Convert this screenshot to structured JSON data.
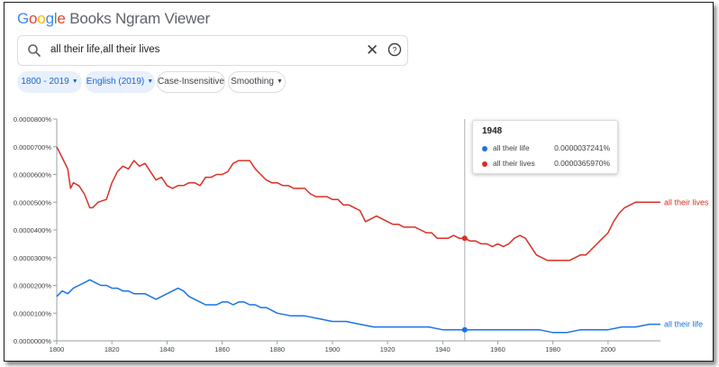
{
  "app": {
    "logo_google": [
      "G",
      "o",
      "o",
      "g",
      "l",
      "e"
    ],
    "logo_colors": [
      "#4285f4",
      "#ea4335",
      "#fbbc05",
      "#4285f4",
      "#34a853",
      "#ea4335"
    ],
    "logo_rest": " Books Ngram Viewer"
  },
  "search": {
    "query": "all their life,all their lives",
    "clear_icon": "close-icon",
    "help_icon": "help-icon"
  },
  "filters": {
    "years": "1800 - 2019",
    "corpus": "English (2019)",
    "case": "Case-Insensitive",
    "smoothing": "Smoothing"
  },
  "tooltip": {
    "year": "1948",
    "rows": [
      {
        "name": "all their life",
        "value": "0.0000037241%",
        "color": "#1a73e8"
      },
      {
        "name": "all their lives",
        "value": "0.0000365970%",
        "color": "#d93025"
      }
    ]
  },
  "chart_data": {
    "type": "line",
    "xlim": [
      1800,
      2019
    ],
    "ylim": [
      0,
      8e-06
    ],
    "y_ticks": [
      "0.0000000%",
      "0.0000100%",
      "0.0000200%",
      "0.0000300%",
      "0.0000400%",
      "0.0000500%",
      "0.0000600%",
      "0.0000700%",
      "0.0000800%"
    ],
    "x_ticks": [
      "1800",
      "1820",
      "1840",
      "1860",
      "1880",
      "1900",
      "1920",
      "1940",
      "1960",
      "1980",
      "2000"
    ],
    "hover_year": 1948,
    "series": [
      {
        "name": "all their lives",
        "color": "#d93025",
        "x": [
          1800,
          1802,
          1804,
          1805,
          1806,
          1808,
          1810,
          1812,
          1813,
          1815,
          1818,
          1820,
          1822,
          1824,
          1826,
          1828,
          1830,
          1832,
          1834,
          1836,
          1838,
          1840,
          1842,
          1844,
          1846,
          1848,
          1850,
          1852,
          1854,
          1856,
          1858,
          1860,
          1862,
          1864,
          1866,
          1868,
          1870,
          1872,
          1874,
          1876,
          1878,
          1880,
          1882,
          1884,
          1886,
          1888,
          1890,
          1892,
          1894,
          1896,
          1898,
          1900,
          1902,
          1904,
          1906,
          1908,
          1910,
          1912,
          1914,
          1916,
          1918,
          1920,
          1922,
          1924,
          1926,
          1928,
          1930,
          1932,
          1934,
          1936,
          1938,
          1940,
          1942,
          1944,
          1946,
          1948,
          1950,
          1952,
          1954,
          1956,
          1958,
          1960,
          1962,
          1964,
          1966,
          1968,
          1970,
          1972,
          1974,
          1976,
          1978,
          1980,
          1982,
          1984,
          1986,
          1988,
          1990,
          1992,
          1994,
          1996,
          1998,
          2000,
          2002,
          2004,
          2006,
          2008,
          2010,
          2012,
          2014,
          2016,
          2019
        ],
        "values": [
          7e-06,
          6.6e-06,
          6.2e-06,
          5.5e-06,
          5.7e-06,
          5.6e-06,
          5.3e-06,
          4.8e-06,
          4.8e-06,
          5e-06,
          5.1e-06,
          5.7e-06,
          6.1e-06,
          6.3e-06,
          6.2e-06,
          6.5e-06,
          6.3e-06,
          6.4e-06,
          6.1e-06,
          5.8e-06,
          5.9e-06,
          5.6e-06,
          5.5e-06,
          5.6e-06,
          5.6e-06,
          5.7e-06,
          5.7e-06,
          5.6e-06,
          5.9e-06,
          5.9e-06,
          6e-06,
          6e-06,
          6.1e-06,
          6.4e-06,
          6.5e-06,
          6.5e-06,
          6.5e-06,
          6.2e-06,
          6e-06,
          5.8e-06,
          5.7e-06,
          5.7e-06,
          5.6e-06,
          5.6e-06,
          5.5e-06,
          5.5e-06,
          5.5e-06,
          5.3e-06,
          5.2e-06,
          5.2e-06,
          5.2e-06,
          5.1e-06,
          5.1e-06,
          4.9e-06,
          4.9e-06,
          4.8e-06,
          4.7e-06,
          4.3e-06,
          4.4e-06,
          4.5e-06,
          4.4e-06,
          4.3e-06,
          4.2e-06,
          4.2e-06,
          4.1e-06,
          4.1e-06,
          4.1e-06,
          4e-06,
          3.9e-06,
          3.9e-06,
          3.7e-06,
          3.7e-06,
          3.7e-06,
          3.8e-06,
          3.7e-06,
          3.7e-06,
          3.6e-06,
          3.6e-06,
          3.5e-06,
          3.5e-06,
          3.4e-06,
          3.5e-06,
          3.4e-06,
          3.5e-06,
          3.7e-06,
          3.8e-06,
          3.7e-06,
          3.4e-06,
          3.1e-06,
          3e-06,
          2.9e-06,
          2.9e-06,
          2.9e-06,
          2.9e-06,
          2.9e-06,
          3e-06,
          3.1e-06,
          3.1e-06,
          3.3e-06,
          3.5e-06,
          3.7e-06,
          3.9e-06,
          4.3e-06,
          4.6e-06,
          4.8e-06,
          4.9e-06,
          5e-06,
          5e-06,
          5e-06,
          5e-06,
          5e-06
        ]
      },
      {
        "name": "all their life",
        "color": "#1a73e8",
        "x": [
          1800,
          1802,
          1804,
          1806,
          1808,
          1810,
          1812,
          1814,
          1816,
          1818,
          1820,
          1822,
          1824,
          1826,
          1828,
          1830,
          1832,
          1834,
          1836,
          1838,
          1840,
          1842,
          1844,
          1846,
          1848,
          1850,
          1852,
          1854,
          1856,
          1858,
          1860,
          1862,
          1864,
          1866,
          1868,
          1870,
          1872,
          1874,
          1876,
          1878,
          1880,
          1885,
          1890,
          1895,
          1900,
          1905,
          1910,
          1915,
          1920,
          1925,
          1930,
          1935,
          1940,
          1945,
          1948,
          1950,
          1955,
          1960,
          1965,
          1970,
          1975,
          1980,
          1985,
          1990,
          1995,
          2000,
          2005,
          2010,
          2015,
          2019
        ],
        "values": [
          1.6e-06,
          1.8e-06,
          1.7e-06,
          1.9e-06,
          2e-06,
          2.1e-06,
          2.2e-06,
          2.1e-06,
          2e-06,
          2e-06,
          1.9e-06,
          1.9e-06,
          1.8e-06,
          1.8e-06,
          1.7e-06,
          1.7e-06,
          1.7e-06,
          1.6e-06,
          1.5e-06,
          1.6e-06,
          1.7e-06,
          1.8e-06,
          1.9e-06,
          1.8e-06,
          1.6e-06,
          1.5e-06,
          1.4e-06,
          1.3e-06,
          1.3e-06,
          1.3e-06,
          1.4e-06,
          1.4e-06,
          1.3e-06,
          1.4e-06,
          1.4e-06,
          1.3e-06,
          1.3e-06,
          1.2e-06,
          1.2e-06,
          1.1e-06,
          1e-06,
          9e-07,
          9e-07,
          8e-07,
          7e-07,
          7e-07,
          6e-07,
          5e-07,
          5e-07,
          5e-07,
          5e-07,
          5e-07,
          4e-07,
          4e-07,
          4e-07,
          4e-07,
          4e-07,
          4e-07,
          4e-07,
          4e-07,
          4e-07,
          3e-07,
          3e-07,
          4e-07,
          4e-07,
          4e-07,
          5e-07,
          5e-07,
          6e-07,
          6e-07
        ]
      }
    ]
  }
}
